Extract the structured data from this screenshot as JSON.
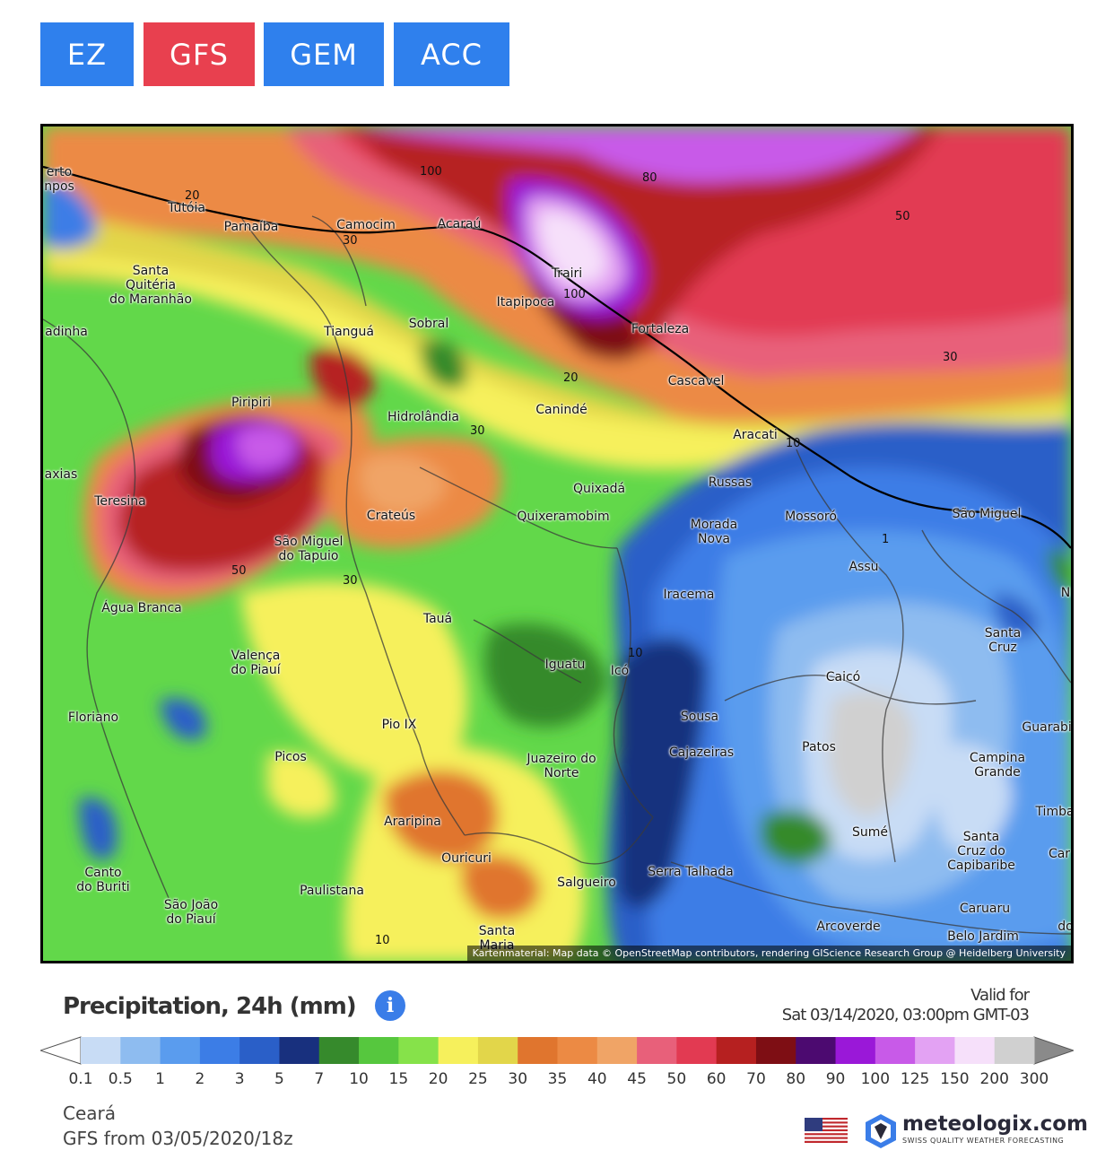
{
  "tabs": [
    {
      "label": "EZ",
      "color": "#2f80ed"
    },
    {
      "label": "GFS",
      "color": "#e8404f"
    },
    {
      "label": "GEM",
      "color": "#2f80ed"
    },
    {
      "label": "ACC",
      "color": "#2f80ed"
    }
  ],
  "map": {
    "attribution": "Kartenmaterial: Map data © OpenStreetMap contributors, rendering GIScience Research Group @ Heidelberg University",
    "cities": [
      {
        "name": "erto\nnpos"
      },
      {
        "name": "Tutóia"
      },
      {
        "name": "Parnaíba"
      },
      {
        "name": "Camocim"
      },
      {
        "name": "Acaraú"
      },
      {
        "name": "Trairi"
      },
      {
        "name": "Itapipoca"
      },
      {
        "name": "Fortaleza"
      },
      {
        "name": "Santa\nQuitéria\ndo Maranhão"
      },
      {
        "name": "adinha"
      },
      {
        "name": "Tianguá"
      },
      {
        "name": "Sobral"
      },
      {
        "name": "Cascavel"
      },
      {
        "name": "Piripiri"
      },
      {
        "name": "Hidrolândia"
      },
      {
        "name": "Canindé"
      },
      {
        "name": "Aracati"
      },
      {
        "name": "axias"
      },
      {
        "name": "Teresina"
      },
      {
        "name": "Crateús"
      },
      {
        "name": "Quixadá"
      },
      {
        "name": "Quixeramobim"
      },
      {
        "name": "Russas"
      },
      {
        "name": "Morada\nNova"
      },
      {
        "name": "Mossoró"
      },
      {
        "name": "São Miguel"
      },
      {
        "name": "São Miguel\ndo Tapuio"
      },
      {
        "name": "Assu"
      },
      {
        "name": "Água Branca"
      },
      {
        "name": "Iracema"
      },
      {
        "name": "Tauá"
      },
      {
        "name": "N"
      },
      {
        "name": "Santa\nCruz"
      },
      {
        "name": "Valença\ndo Piauí"
      },
      {
        "name": "Iguatu"
      },
      {
        "name": "Icó"
      },
      {
        "name": "Caicó"
      },
      {
        "name": "Floriano"
      },
      {
        "name": "Pio IX"
      },
      {
        "name": "Sousa"
      },
      {
        "name": "Guarabir"
      },
      {
        "name": "Picos"
      },
      {
        "name": "Juazeiro do\nNorte"
      },
      {
        "name": "Cajazeiras"
      },
      {
        "name": "Patos"
      },
      {
        "name": "Campina\nGrande"
      },
      {
        "name": "Timba"
      },
      {
        "name": "Araripina"
      },
      {
        "name": "Sumé"
      },
      {
        "name": "Santa\nCruz do\nCapibaribe"
      },
      {
        "name": "Car"
      },
      {
        "name": "Canto\ndo Buriti"
      },
      {
        "name": "Ouricuri"
      },
      {
        "name": "Serra Talhada"
      },
      {
        "name": "Paulistana"
      },
      {
        "name": "Salgueiro"
      },
      {
        "name": "São João\ndo Piauí"
      },
      {
        "name": "Caruaru"
      },
      {
        "name": "Arcoverde"
      },
      {
        "name": "Santa\nMaria"
      },
      {
        "name": "Belo Jardim"
      },
      {
        "name": "do"
      }
    ],
    "contour_labels": [
      "20",
      "30",
      "100",
      "80",
      "50",
      "100",
      "30",
      "20",
      "30",
      "10",
      "50",
      "30",
      "1",
      "10",
      "10"
    ]
  },
  "legend": {
    "title": "Precipitation, 24h (mm)",
    "info_icon": "info-icon",
    "valid_label": "Valid for",
    "valid_time": "Sat 03/14/2020, 03:00pm GMT-03",
    "ticks": [
      "0.1",
      "0.5",
      "1",
      "2",
      "3",
      "5",
      "7",
      "10",
      "15",
      "20",
      "25",
      "30",
      "35",
      "40",
      "45",
      "50",
      "60",
      "70",
      "80",
      "90",
      "100",
      "125",
      "150",
      "200",
      "300"
    ],
    "colors": [
      "#c8dcf5",
      "#8ebcf0",
      "#5a9cee",
      "#3c7de6",
      "#2a5fc8",
      "#18307e",
      "#368a2c",
      "#56c73e",
      "#86e24a",
      "#f6f05c",
      "#e2d64a",
      "#e0752e",
      "#ec8a44",
      "#f0a466",
      "#e8607a",
      "#e23a52",
      "#b62020",
      "#7e0e14",
      "#4c0a70",
      "#9a18d8",
      "#c85ae8",
      "#e3a2f3",
      "#f6e0fa",
      "#d0d0d0"
    ]
  },
  "footer": {
    "region": "Ceará",
    "run": "GFS from 03/05/2020/18z",
    "flag_icon": "us-flag-icon",
    "brand_name": "meteologix.com",
    "brand_tagline": "SWISS QUALITY WEATHER FORECASTING",
    "brand_icon": "meteologix-logo-icon"
  }
}
